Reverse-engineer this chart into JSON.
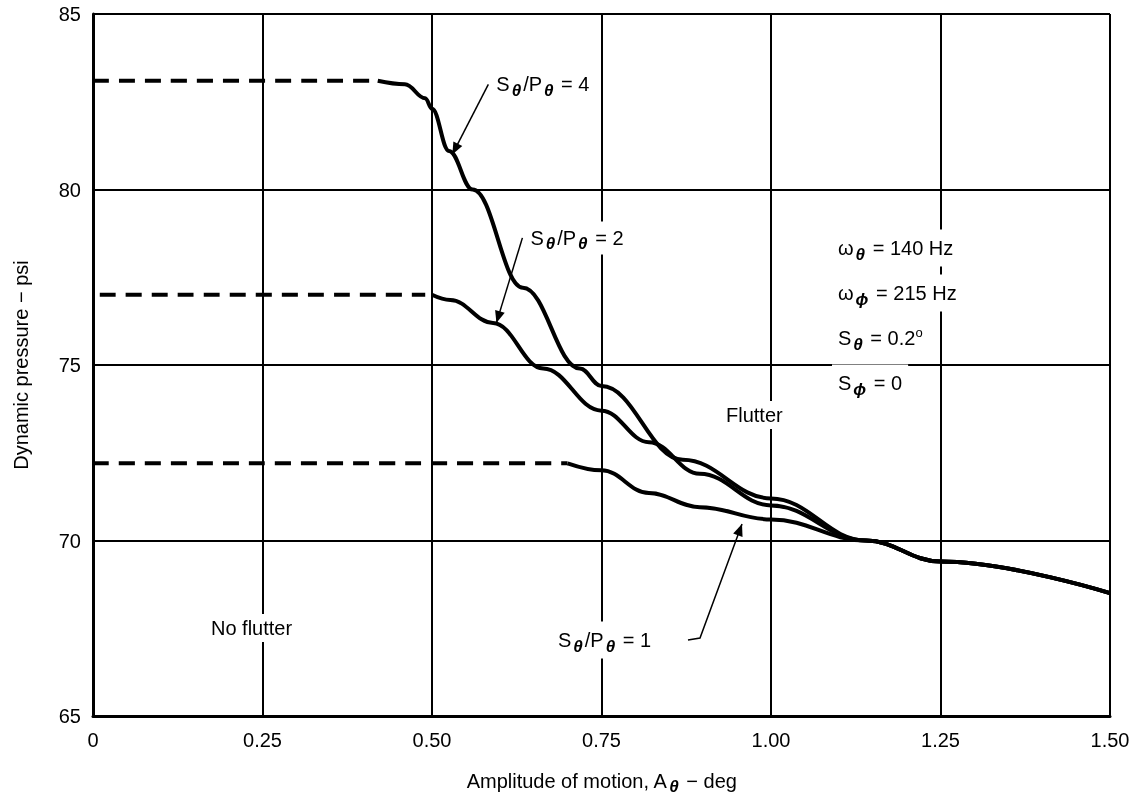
{
  "chart_data": {
    "type": "line",
    "xlabel": "Amplitude of motion, A$_{θ}$ − deg",
    "ylabel": "Dynamic pressure − psi",
    "xlim": [
      0,
      1.5
    ],
    "ylim": [
      65,
      85
    ],
    "xticks": [
      0,
      {
        "value": 0.25,
        "label": "0.25"
      },
      {
        "value": 0.5,
        "label": "0.50"
      },
      {
        "value": 0.75,
        "label": "0.75"
      },
      {
        "value": 1,
        "label": "1.00"
      },
      {
        "value": 1.25,
        "label": "1.25"
      },
      {
        "value": 1.5,
        "label": "1.50"
      }
    ],
    "yticks": [
      65,
      70,
      75,
      80,
      85
    ],
    "grid": true,
    "marker": "none",
    "series": [
      {
        "color": "#000000",
        "line_style": "dashed",
        "x": [
          0,
          0.42
        ],
        "values": [
          83.1,
          83.1
        ]
      },
      {
        "color": "#000000",
        "line_style": "solid",
        "x": [
          0.42,
          0.46,
          0.49,
          0.5,
          0.525,
          0.56,
          0.634,
          0.718,
          0.75,
          0.87,
          1.0,
          1.14,
          1.25,
          1.5
        ],
        "values": [
          83.1,
          83.0,
          82.6,
          82.3,
          81.1,
          80.0,
          77.2,
          74.9,
          74.4,
          72.3,
          71.2,
          70.0,
          69.4,
          68.5
        ]
      },
      {
        "color": "#000000",
        "line_style": "dashed",
        "x": [
          0.01,
          0.49
        ],
        "values": [
          77.0,
          77.0
        ]
      },
      {
        "color": "#000000",
        "line_style": "solid",
        "x": [
          0.5,
          0.527,
          0.59,
          0.664,
          0.75,
          0.82,
          0.895,
          1.0,
          1.14,
          1.25,
          1.5
        ],
        "values": [
          77.0,
          76.85,
          76.2,
          74.9,
          73.7,
          72.8,
          71.9,
          71.0,
          70.0,
          69.4,
          68.5
        ]
      },
      {
        "color": "#000000",
        "line_style": "dashed",
        "x": [
          0,
          0.7
        ],
        "values": [
          72.2,
          72.2
        ]
      },
      {
        "color": "#000000",
        "line_style": "solid",
        "x": [
          0.7,
          0.75,
          0.82,
          0.895,
          1.0,
          1.14,
          1.25,
          1.5
        ],
        "values": [
          72.2,
          72.0,
          71.35,
          70.95,
          70.6,
          70.0,
          69.4,
          68.5
        ]
      }
    ],
    "annotations": [
      {
        "text": "S$_{θ}$/P$_{θ}$ = 4",
        "x": 0.53,
        "y": 81.0
      },
      {
        "text": "S$_{θ}$/P$_{θ}$ = 2",
        "x": 0.595,
        "y": 76.2
      },
      "S$_{θ}$/P$_{θ}$ = 1",
      "Flutter",
      "No flutter",
      "ω$_{θ}$ = 140 Hz",
      "ω$_{ϕ}$ = 215 Hz",
      "S$_{θ}$ = 0.2$^{o}$",
      "S$_{ϕ}$ = 0"
    ]
  }
}
